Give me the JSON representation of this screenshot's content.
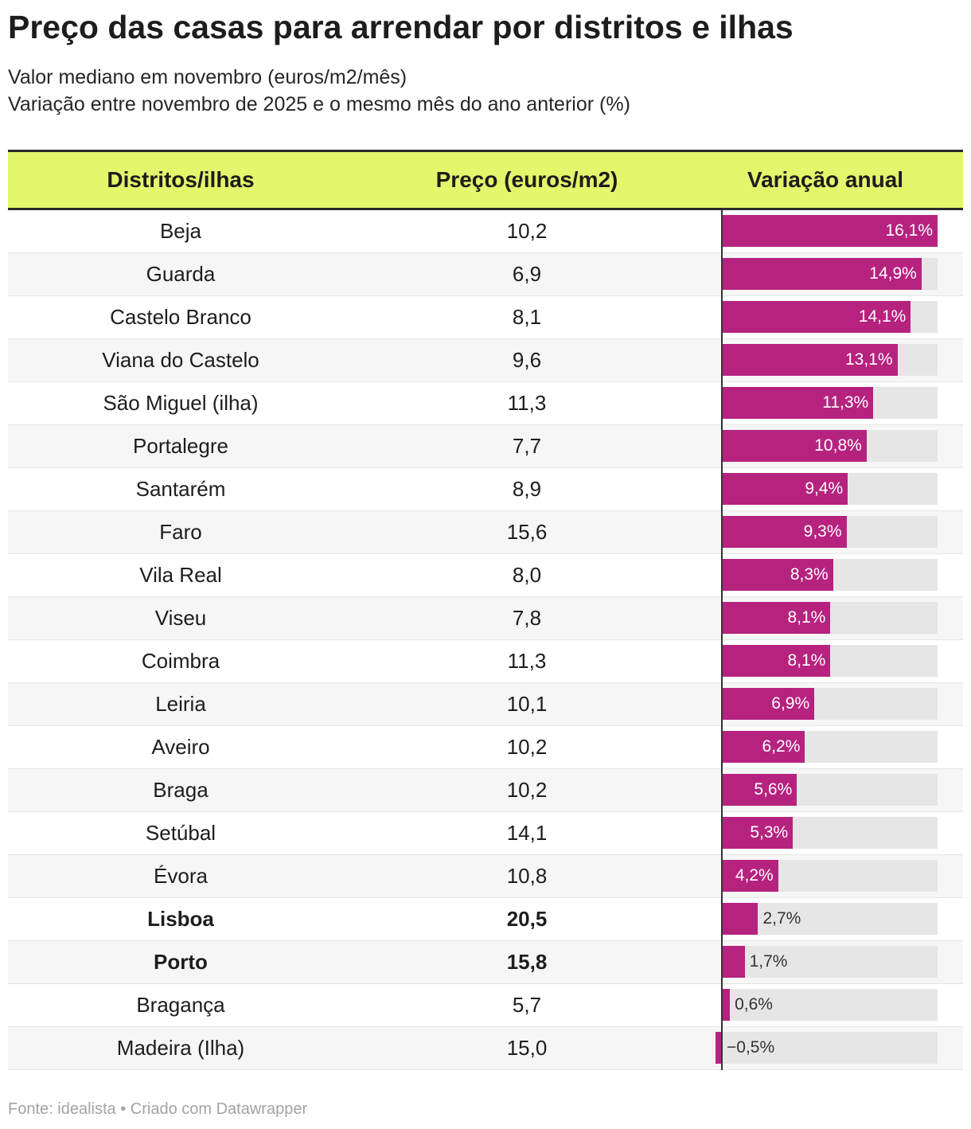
{
  "colors": {
    "bar": "#b6237f",
    "bar_background": "#e6e6e6",
    "header_background": "#e3f66c",
    "axis": "#333333"
  },
  "chart_data": {
    "type": "table",
    "title": "Preço das casas para arrendar por distritos e ilhas",
    "subtitle": [
      "Valor mediano em novembro (euros/m2/mês)",
      "Variação entre novembro de 2025 e o mesmo mês do ano anterior (%)"
    ],
    "columns": [
      "Distritos/ilhas",
      "Preço (euros/m2)",
      "Variação anual"
    ],
    "bar_column": "Variação anual",
    "xlim": [
      -0.5,
      16.1
    ],
    "rows": [
      {
        "name": "Beja",
        "price": "10,2",
        "change": 16.1,
        "change_label": "16,1%"
      },
      {
        "name": "Guarda",
        "price": "6,9",
        "change": 14.9,
        "change_label": "14,9%"
      },
      {
        "name": "Castelo Branco",
        "price": "8,1",
        "change": 14.1,
        "change_label": "14,1%"
      },
      {
        "name": "Viana do Castelo",
        "price": "9,6",
        "change": 13.1,
        "change_label": "13,1%"
      },
      {
        "name": "São Miguel (ilha)",
        "price": "11,3",
        "change": 11.3,
        "change_label": "11,3%"
      },
      {
        "name": "Portalegre",
        "price": "7,7",
        "change": 10.8,
        "change_label": "10,8%"
      },
      {
        "name": "Santarém",
        "price": "8,9",
        "change": 9.4,
        "change_label": "9,4%"
      },
      {
        "name": "Faro",
        "price": "15,6",
        "change": 9.3,
        "change_label": "9,3%"
      },
      {
        "name": "Vila Real",
        "price": "8,0",
        "change": 8.3,
        "change_label": "8,3%"
      },
      {
        "name": "Viseu",
        "price": "7,8",
        "change": 8.1,
        "change_label": "8,1%"
      },
      {
        "name": "Coimbra",
        "price": "11,3",
        "change": 8.1,
        "change_label": "8,1%"
      },
      {
        "name": "Leiria",
        "price": "10,1",
        "change": 6.9,
        "change_label": "6,9%"
      },
      {
        "name": "Aveiro",
        "price": "10,2",
        "change": 6.2,
        "change_label": "6,2%"
      },
      {
        "name": "Braga",
        "price": "10,2",
        "change": 5.6,
        "change_label": "5,6%"
      },
      {
        "name": "Setúbal",
        "price": "14,1",
        "change": 5.3,
        "change_label": "5,3%"
      },
      {
        "name": "Évora",
        "price": "10,8",
        "change": 4.2,
        "change_label": "4,2%"
      },
      {
        "name": "Lisboa",
        "price": "20,5",
        "change": 2.7,
        "change_label": "2,7%",
        "highlight": true
      },
      {
        "name": "Porto",
        "price": "15,8",
        "change": 1.7,
        "change_label": "1,7%",
        "highlight": true
      },
      {
        "name": "Bragança",
        "price": "5,7",
        "change": 0.6,
        "change_label": "0,6%"
      },
      {
        "name": "Madeira (Ilha)",
        "price": "15,0",
        "change": -0.5,
        "change_label": "−0,5%"
      }
    ]
  },
  "footer": {
    "source_label": "Fonte:",
    "source_name": "idealista",
    "separator": "•",
    "credit": "Criado com Datawrapper"
  }
}
